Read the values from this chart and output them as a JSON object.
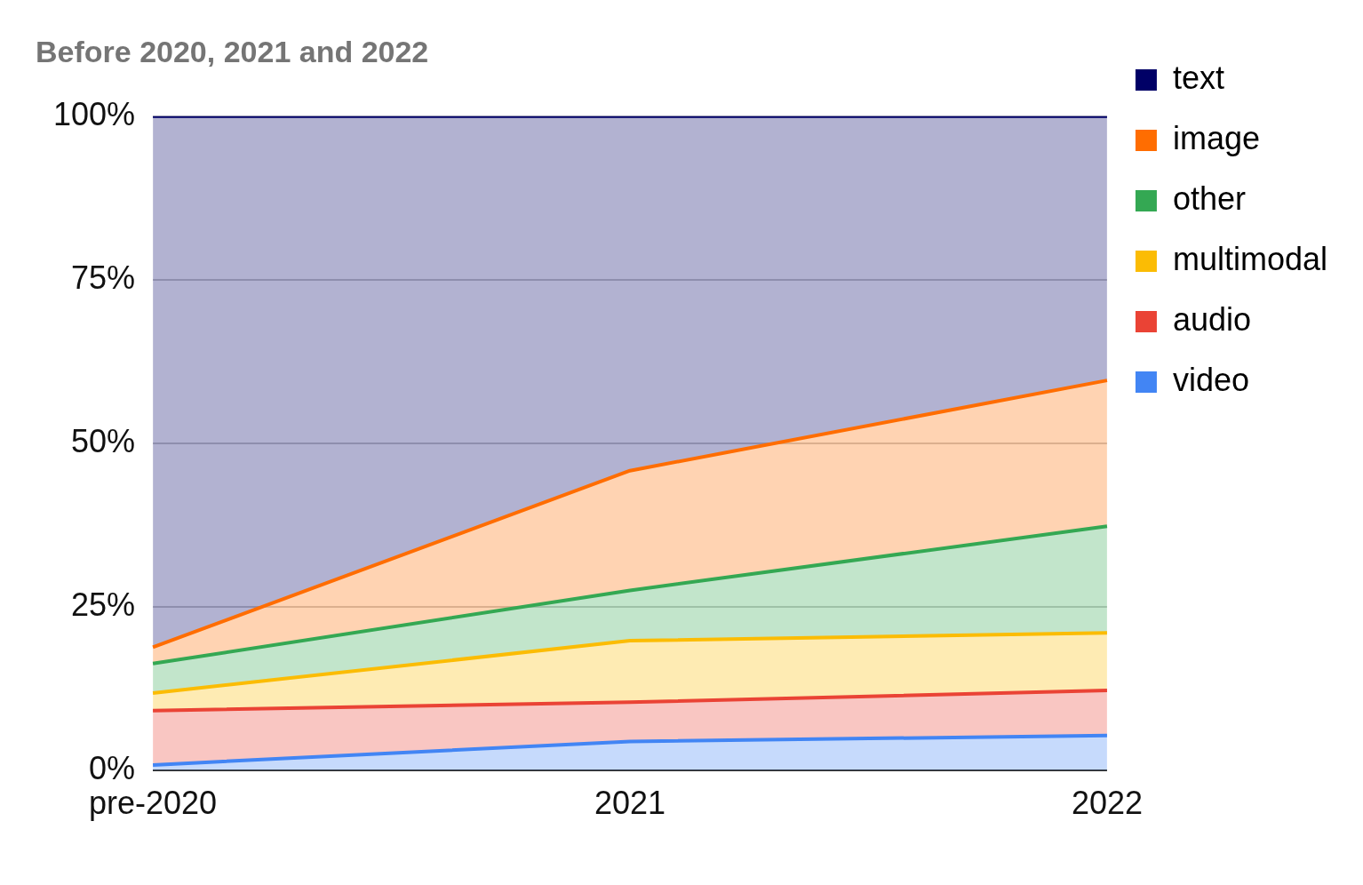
{
  "chart_data": {
    "type": "area",
    "title": "Before 2020, 2021 and 2022",
    "categories": [
      "pre-2020",
      "2021",
      "2022"
    ],
    "stacked": true,
    "series": [
      {
        "name": "video",
        "color": "#4285f4",
        "values": [
          0.8,
          4.4,
          5.3
        ]
      },
      {
        "name": "audio",
        "color": "#ea4335",
        "values": [
          8.3,
          6.0,
          6.9
        ]
      },
      {
        "name": "multimodal",
        "color": "#fbbc04",
        "values": [
          2.7,
          9.4,
          8.8
        ]
      },
      {
        "name": "other",
        "color": "#34a853",
        "values": [
          4.5,
          7.7,
          16.3
        ]
      },
      {
        "name": "image",
        "color": "#ff6d01",
        "values": [
          2.5,
          18.3,
          22.3
        ]
      },
      {
        "name": "text",
        "color": "#000066",
        "values": [
          81.2,
          54.2,
          40.4
        ]
      }
    ],
    "ylim": [
      0,
      100
    ],
    "yticks": [
      {
        "value": 0,
        "label": "0%"
      },
      {
        "value": 25,
        "label": "25%"
      },
      {
        "value": 50,
        "label": "50%"
      },
      {
        "value": 75,
        "label": "75%"
      },
      {
        "value": 100,
        "label": "100%"
      }
    ],
    "grid": "y",
    "legend": "right",
    "marker": "none",
    "line_style": "solid"
  }
}
